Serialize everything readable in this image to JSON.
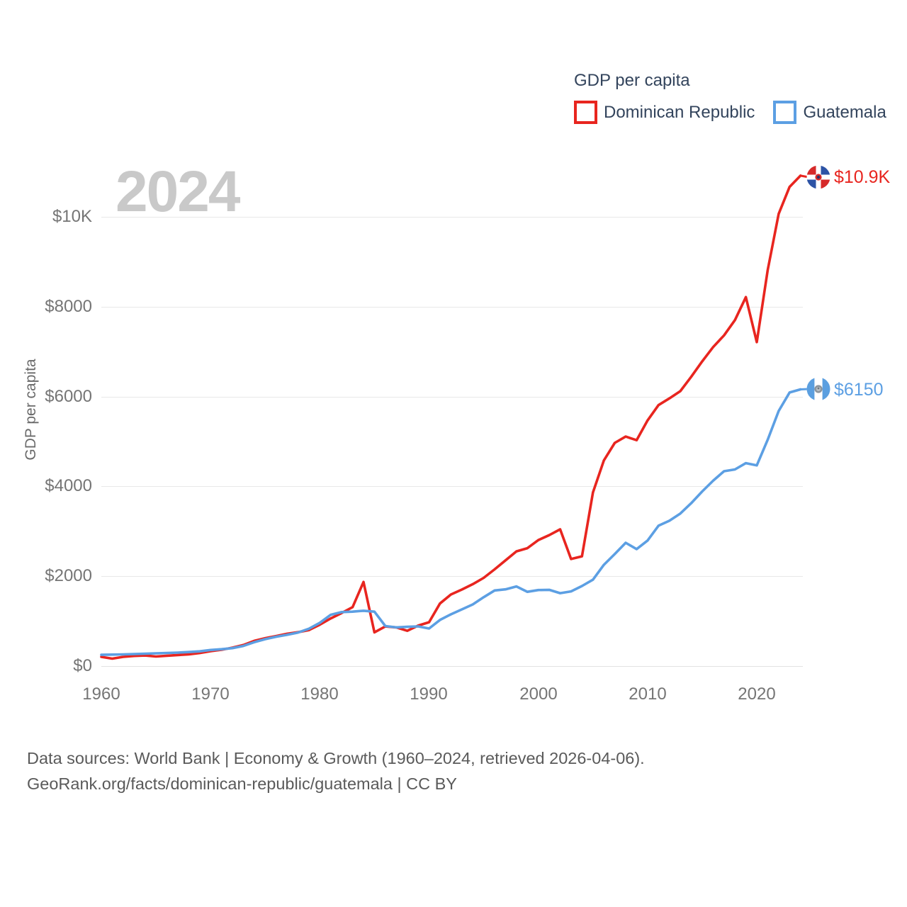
{
  "colors": {
    "dominican_republic": "#e8251f",
    "guatemala": "#5c9fe3",
    "text_dark": "#33445c",
    "text_tick": "#757575",
    "watermark": "#c9c9c9",
    "gridline": "#e8e8e8"
  },
  "legend": {
    "title": "GDP per capita",
    "items": [
      {
        "label": "Dominican Republic"
      },
      {
        "label": "Guatemala"
      }
    ]
  },
  "watermark_year": "2024",
  "y_axis_title": "GDP per capita",
  "end_labels": [
    {
      "value": "$10.9K",
      "flag_icon": "dominican-republic-flag"
    },
    {
      "value": "$6150",
      "flag_icon": "guatemala-flag"
    }
  ],
  "footer": {
    "line1": "Data sources: World Bank | Economy & Growth (1960–2024, retrieved 2026-04-06).",
    "line2": "GeoRank.org/facts/dominican-republic/guatemala | CC BY"
  },
  "chart_data": {
    "type": "line",
    "title": "GDP per capita",
    "xlabel": "",
    "ylabel": "GDP per capita",
    "x_start": 1960,
    "x_end": 2024,
    "ylim": [
      0,
      11200
    ],
    "grid": true,
    "legend_position": "top-right",
    "x_tick_labels": [
      "1960",
      "1970",
      "1980",
      "1990",
      "2000",
      "2010",
      "2020"
    ],
    "y_tick_labels": [
      "$0",
      "$2000",
      "$4000",
      "$6000",
      "$8000",
      "$10K"
    ],
    "y_tick_values": [
      0,
      2000,
      4000,
      6000,
      8000,
      10000
    ],
    "series": [
      {
        "name": "Dominican Republic",
        "color": "#e8251f",
        "end_label": "$10.9K",
        "values": [
          204,
          165,
          205,
          225,
          235,
          212,
          230,
          245,
          262,
          290,
          330,
          362,
          410,
          468,
          560,
          620,
          668,
          718,
          752,
          800,
          920,
          1060,
          1180,
          1310,
          1870,
          750,
          880,
          860,
          785,
          900,
          975,
          1390,
          1590,
          1700,
          1820,
          1960,
          2150,
          2350,
          2550,
          2620,
          2800,
          2910,
          3040,
          2380,
          2440,
          3860,
          4570,
          4960,
          5100,
          5020,
          5460,
          5800,
          5950,
          6110,
          6430,
          6770,
          7090,
          7350,
          7690,
          8200,
          7200,
          8800,
          10050,
          10650,
          10900
        ]
      },
      {
        "name": "Guatemala",
        "color": "#5c9fe3",
        "end_label": "$6150",
        "values": [
          250,
          255,
          260,
          268,
          276,
          284,
          292,
          300,
          312,
          328,
          358,
          375,
          398,
          448,
          530,
          598,
          652,
          695,
          745,
          830,
          960,
          1140,
          1200,
          1210,
          1230,
          1210,
          890,
          860,
          872,
          882,
          835,
          1025,
          1150,
          1260,
          1370,
          1530,
          1680,
          1705,
          1770,
          1650,
          1690,
          1695,
          1620,
          1660,
          1780,
          1920,
          2250,
          2490,
          2740,
          2600,
          2790,
          3120,
          3230,
          3390,
          3620,
          3880,
          4120,
          4330,
          4370,
          4510,
          4460,
          5030,
          5670,
          6080,
          6150
        ]
      }
    ]
  }
}
